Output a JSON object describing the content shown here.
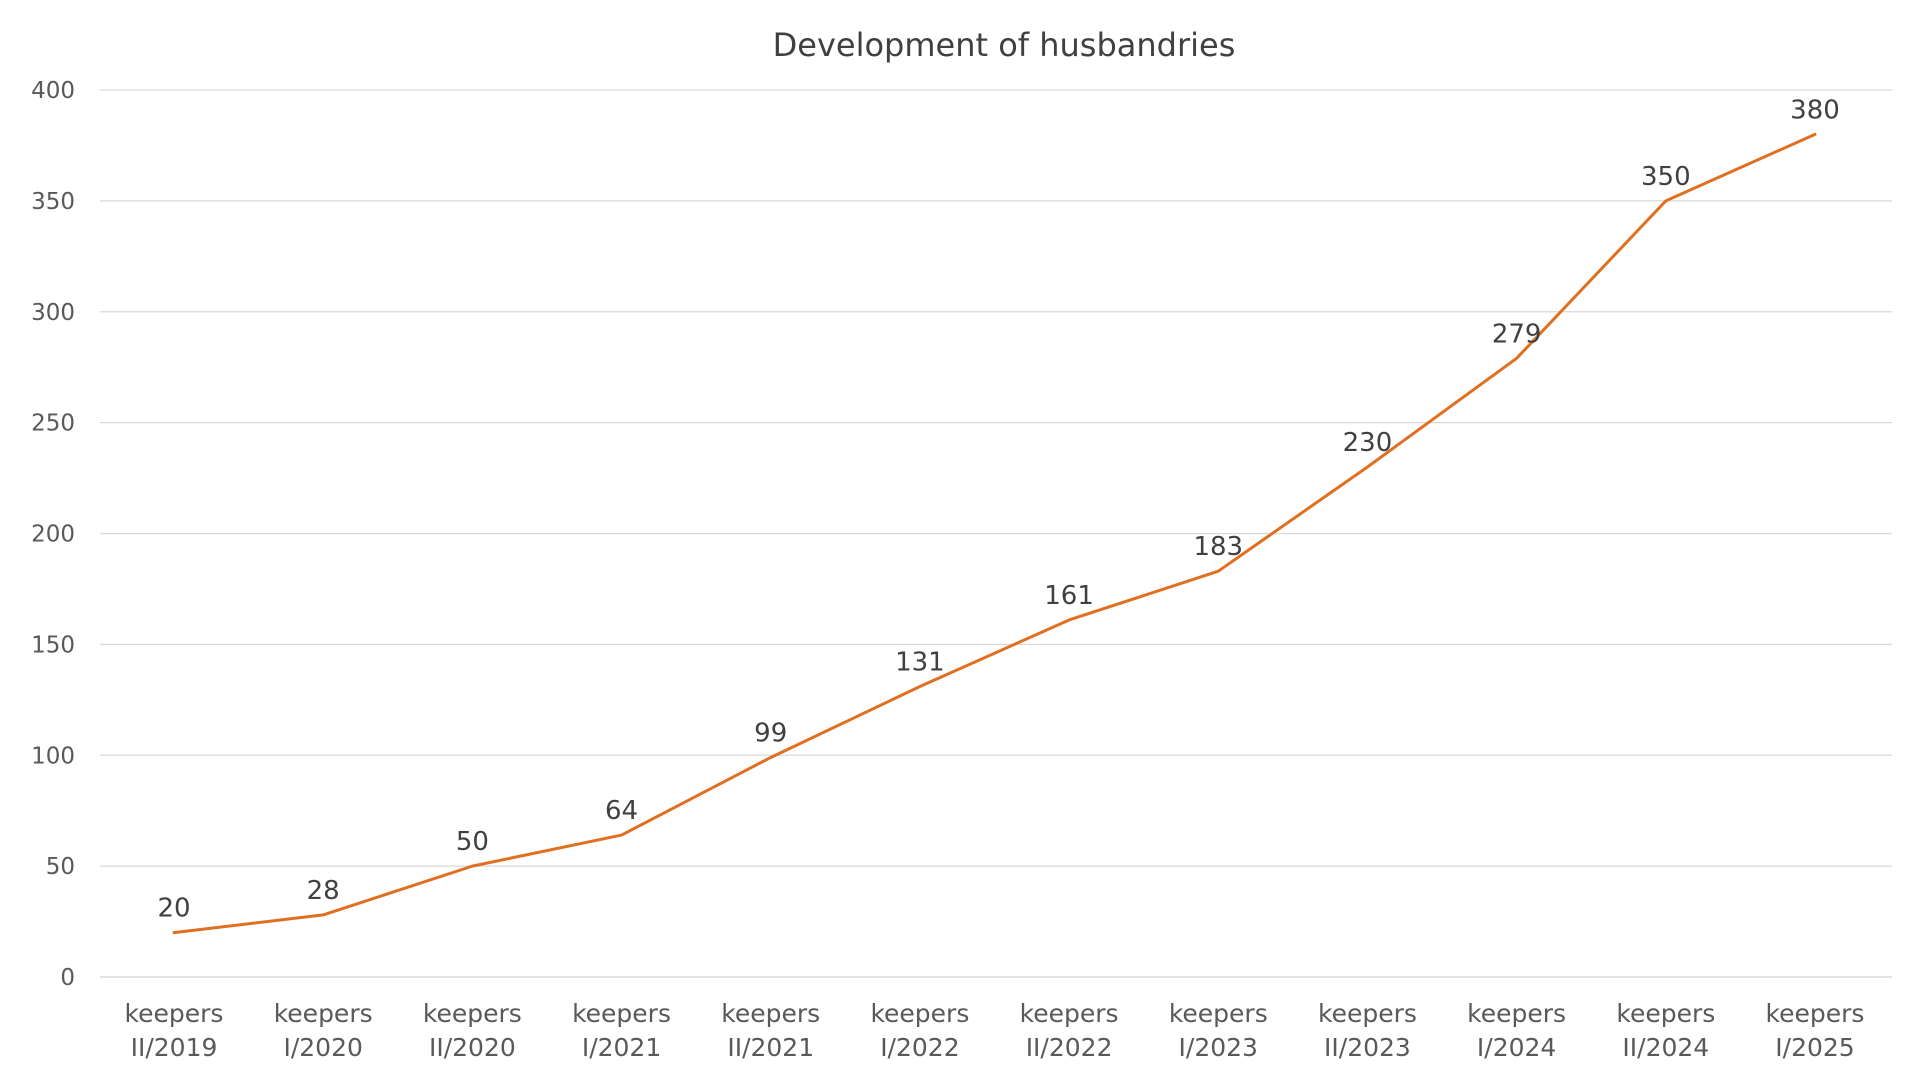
{
  "chart_data": {
    "type": "line",
    "title": "Development of husbandries",
    "xlabel": "",
    "ylabel": "",
    "categories": [
      [
        "keepers",
        "II/2019"
      ],
      [
        "keepers",
        "I/2020"
      ],
      [
        "keepers",
        "II/2020"
      ],
      [
        "keepers",
        "I/2021"
      ],
      [
        "keepers",
        "II/2021"
      ],
      [
        "keepers",
        "I/2022"
      ],
      [
        "keepers",
        "II/2022"
      ],
      [
        "keepers",
        "I/2023"
      ],
      [
        "keepers",
        "II/2023"
      ],
      [
        "keepers",
        "I/2024"
      ],
      [
        "keepers",
        "II/2024"
      ],
      [
        "keepers",
        "I/2025"
      ]
    ],
    "series": [
      {
        "values": [
          20,
          28,
          50,
          64,
          99,
          131,
          161,
          183,
          230,
          279,
          350,
          380
        ],
        "color": "#E07020"
      }
    ],
    "ylim": [
      0,
      400
    ],
    "yticks": [
      0,
      50,
      100,
      150,
      200,
      250,
      300,
      350,
      400
    ],
    "grid": true,
    "data_labels": true,
    "legend": "none"
  }
}
